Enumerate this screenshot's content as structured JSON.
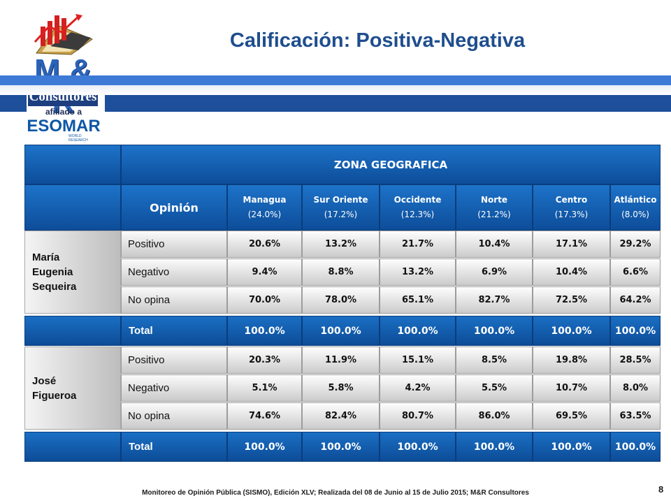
{
  "header": {
    "title": "Calificación: Positiva-Negativa"
  },
  "logo": {
    "brand": "M & R",
    "sub": "Consultores",
    "affiliation": "afiliado a",
    "partner": "ESOMAR",
    "partner_tag": "WORLD RESEARCH"
  },
  "table": {
    "zone_title": "ZONA GEOGRAFICA",
    "opinion_header": "Opinión",
    "columns": [
      {
        "name": "Managua",
        "pct": "(24.0%)"
      },
      {
        "name": "Sur Oriente",
        "pct": "(17.2%)"
      },
      {
        "name": "Occidente",
        "pct": "(12.3%)"
      },
      {
        "name": "Norte",
        "pct": "(21.2%)"
      },
      {
        "name": "Centro",
        "pct": "(17.3%)"
      },
      {
        "name": "Atlántico",
        "pct": "(8.0%)"
      }
    ],
    "candidates": [
      {
        "name": "María\nEugenia\nSequeira",
        "rows": [
          {
            "label": "Positivo",
            "values": [
              "20.6%",
              "13.2%",
              "21.7%",
              "10.4%",
              "17.1%",
              "29.2%"
            ]
          },
          {
            "label": "Negativo",
            "values": [
              "9.4%",
              "8.8%",
              "13.2%",
              "6.9%",
              "10.4%",
              "6.6%"
            ]
          },
          {
            "label": "No opina",
            "values": [
              "70.0%",
              "78.0%",
              "65.1%",
              "82.7%",
              "72.5%",
              "64.2%"
            ]
          }
        ],
        "total": {
          "label": "Total",
          "values": [
            "100.0%",
            "100.0%",
            "100.0%",
            "100.0%",
            "100.0%",
            "100.0%"
          ]
        }
      },
      {
        "name": "José\nFigueroa",
        "rows": [
          {
            "label": "Positivo",
            "values": [
              "20.3%",
              "11.9%",
              "15.1%",
              "8.5%",
              "19.8%",
              "28.5%"
            ]
          },
          {
            "label": "Negativo",
            "values": [
              "5.1%",
              "5.8%",
              "4.2%",
              "5.5%",
              "10.7%",
              "8.0%"
            ]
          },
          {
            "label": "No opina",
            "values": [
              "74.6%",
              "82.4%",
              "80.7%",
              "86.0%",
              "69.5%",
              "63.5%"
            ]
          }
        ],
        "total": {
          "label": "Total",
          "values": [
            "100.0%",
            "100.0%",
            "100.0%",
            "100.0%",
            "100.0%",
            "100.0%"
          ]
        }
      }
    ]
  },
  "footer": {
    "text": "Monitoreo de Opinión Pública (SISMO), Edición XLV; Realizada del 08 de Junio al 15 de Julio 2015; M&R Consultores",
    "page_number": "8"
  },
  "colors": {
    "title": "#1f4e8e",
    "table_blue": "#0d4c97",
    "band_light": "#3d7ad6",
    "band_dark": "#1d4f9b"
  }
}
